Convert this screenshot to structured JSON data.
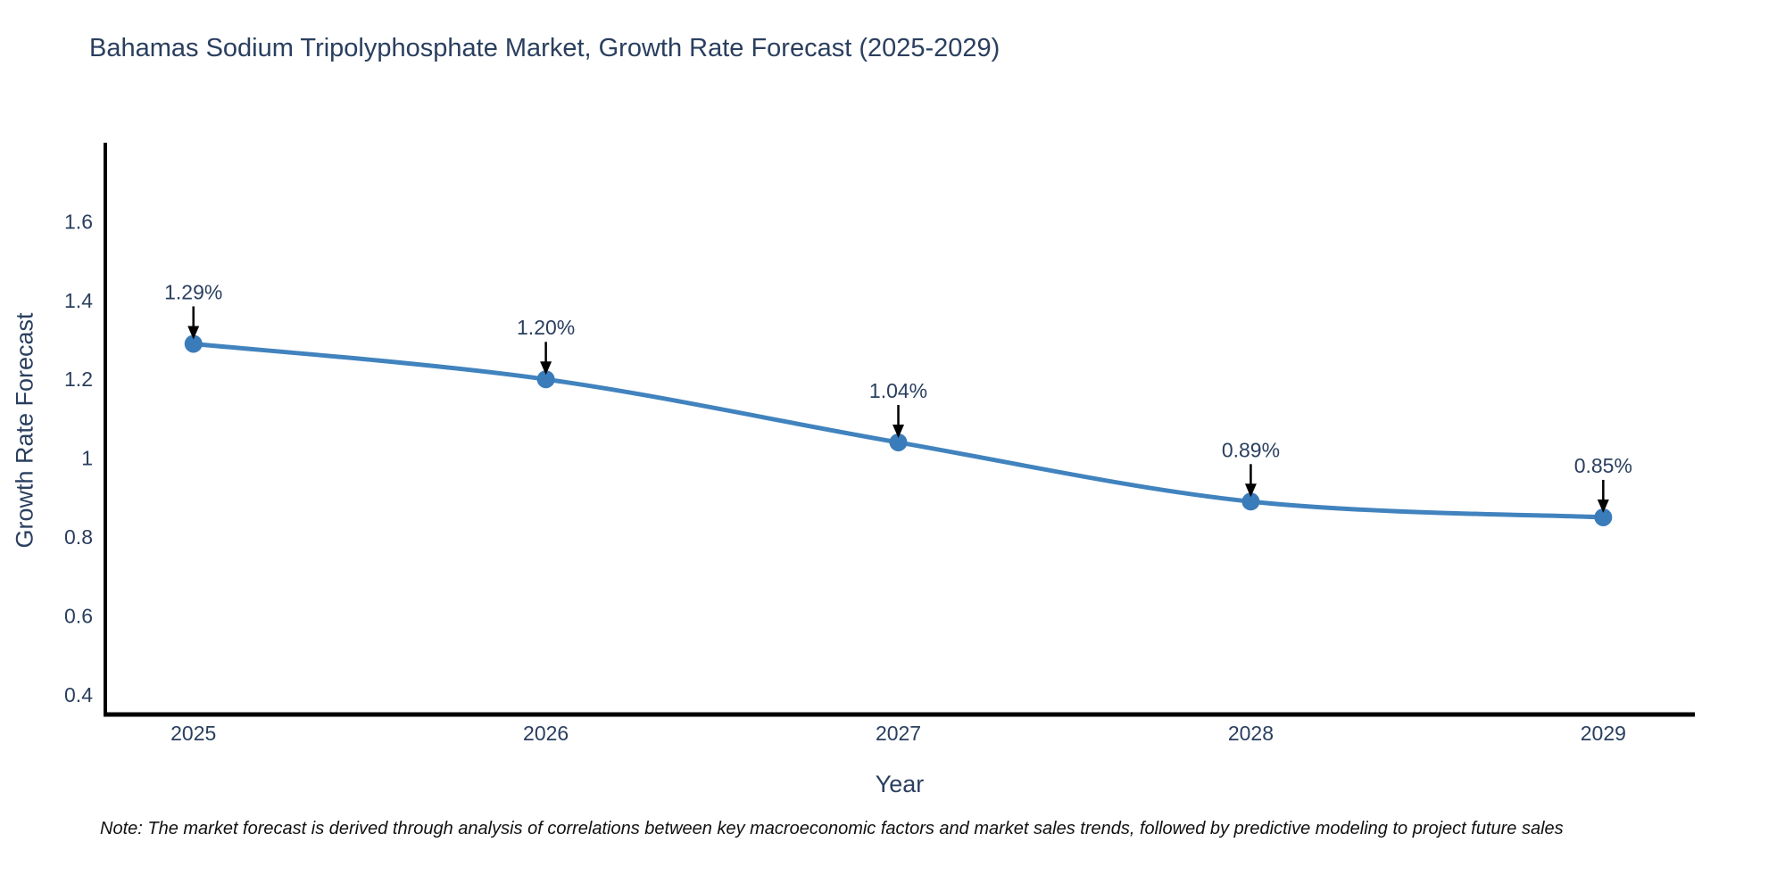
{
  "title": "Bahamas Sodium Tripolyphosphate Market, Growth Rate Forecast (2025-2029)",
  "note": "Note: The market forecast is derived through analysis of correlations between key macroeconomic factors and market sales trends, followed by predictive modeling to project future sales",
  "chart_data": {
    "type": "line",
    "title": "Bahamas Sodium Tripolyphosphate Market, Growth Rate Forecast (2025-2029)",
    "x": [
      2025,
      2026,
      2027,
      2028,
      2029
    ],
    "series": [
      {
        "name": "Growth Rate Forecast",
        "values": [
          1.29,
          1.2,
          1.04,
          0.89,
          0.85
        ]
      }
    ],
    "point_labels": [
      "1.29%",
      "1.20%",
      "1.04%",
      "0.89%",
      "0.85%"
    ],
    "xlabel": "Year",
    "ylabel": "Growth Rate Forecast",
    "xticks": [
      "2025",
      "2026",
      "2027",
      "2028",
      "2029"
    ],
    "ytick_values": [
      0.4,
      0.6,
      0.8,
      1,
      1.2,
      1.4,
      1.6
    ],
    "ytick_labels": [
      "0.4",
      "0.6",
      "0.8",
      "1",
      "1.2",
      "1.4",
      "1.6"
    ],
    "xlim": [
      2024.75,
      2029.26
    ],
    "ylim": [
      0.35,
      1.8
    ],
    "grid": false,
    "legend": "none",
    "line_shape": "spline",
    "line_color": "#4183be",
    "marker_color": "#3a7cba",
    "axis_line_color": "#000000",
    "tick_label_color": "#2a3f5f",
    "annotation_text_color": "#2a3f5f",
    "annotation_arrow_color": "#000000",
    "title_color": "#2a3f5f",
    "background_color": "#ffffff"
  }
}
